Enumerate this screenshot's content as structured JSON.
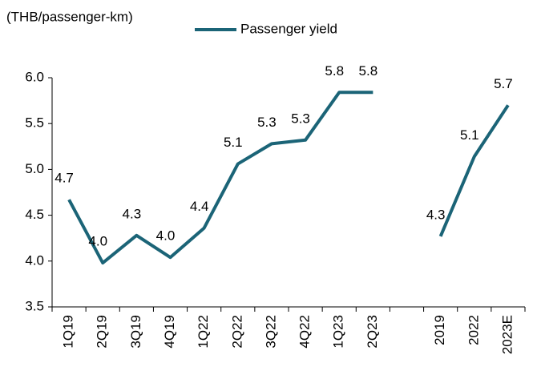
{
  "chart_data": {
    "type": "line",
    "y_axis_label": "(THB/passenger-km)",
    "categories": [
      "1Q19",
      "2Q19",
      "3Q19",
      "4Q19",
      "1Q22",
      "2Q22",
      "3Q22",
      "4Q22",
      "1Q23",
      "2Q23",
      null,
      "2019",
      "2022",
      "2023E"
    ],
    "series": [
      {
        "name": "Passenger yield",
        "color": "#1b6477",
        "values": [
          4.67,
          3.98,
          4.28,
          4.04,
          4.36,
          5.06,
          5.28,
          5.32,
          5.84,
          5.84,
          null,
          4.27,
          5.14,
          5.7
        ],
        "value_labels": [
          "4.7",
          "4.0",
          "4.3",
          "4.0",
          "4.4",
          "5.1",
          "5.3",
          "5.3",
          "5.8",
          "5.8",
          null,
          "4.3",
          "5.1",
          "5.7"
        ]
      }
    ],
    "ylim": [
      3.5,
      6.0
    ],
    "yticks": [
      {
        "value": 3.5,
        "label": "3.5"
      },
      {
        "value": 4.0,
        "label": "4.0"
      },
      {
        "value": 4.5,
        "label": "4.5"
      },
      {
        "value": 5.0,
        "label": "5.0"
      },
      {
        "value": 5.5,
        "label": "5.5"
      },
      {
        "value": 6.0,
        "label": "6.0"
      }
    ],
    "legend": "top"
  }
}
